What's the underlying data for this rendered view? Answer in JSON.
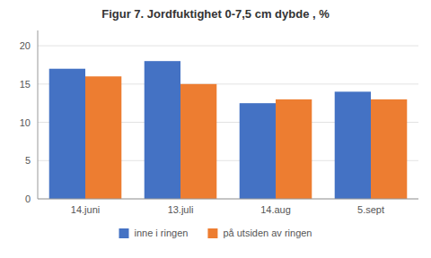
{
  "chart_data": {
    "type": "bar",
    "title": "Figur 7. Jordfuktighet 0-7,5 cm dybde , %",
    "categories": [
      "14.juni",
      "13.juli",
      "14.aug",
      "5.sept"
    ],
    "series": [
      {
        "name": "inne i ringen",
        "color": "#4472C4",
        "values": [
          17,
          18,
          12.5,
          14
        ]
      },
      {
        "name": "på utsiden av ringen",
        "color": "#ED7D31",
        "values": [
          16,
          15,
          13,
          13
        ]
      }
    ],
    "ylim": [
      0,
      22
    ],
    "yticks": [
      0,
      5,
      10,
      15,
      20
    ],
    "grid": true,
    "legend": "bottom"
  }
}
